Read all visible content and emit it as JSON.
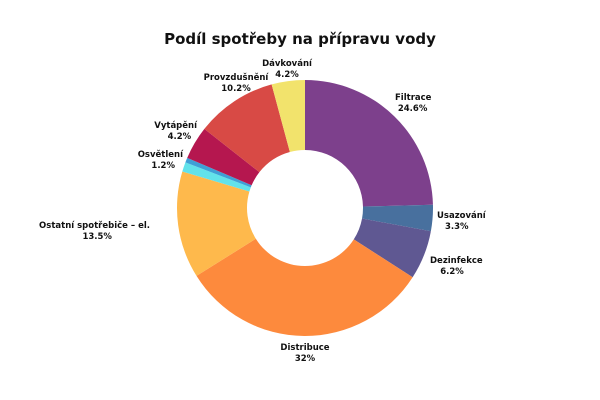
{
  "chart_data": {
    "type": "pie",
    "donut": true,
    "title": "Podíl spotřeby na přípravu vody",
    "legend": "none",
    "slices": [
      {
        "label": "Filtrace",
        "value": 24.6,
        "value_label": "24.6%",
        "color": "#7d408c"
      },
      {
        "label": "Usazování",
        "value": 3.3,
        "value_label": "3.3%",
        "color": "#48709e"
      },
      {
        "label": "Dezinfekce",
        "value": 6.2,
        "value_label": "6.2%",
        "color": "#5f5892"
      },
      {
        "label": "Distribuce",
        "value": 32,
        "value_label": "32%",
        "color": "#fd8a3d"
      },
      {
        "label": "Ostatní spotřebiče – el.",
        "value": 13.5,
        "value_label": "13.5%",
        "color": "#feb94c"
      },
      {
        "label": "Osvětlení",
        "value": 1.2,
        "value_label": "1.2%",
        "color": "#62e2ea"
      },
      {
        "label": "",
        "value": 0.6,
        "value_label": "",
        "color": "#3f9fd6"
      },
      {
        "label": "Vytápění",
        "value": 4.2,
        "value_label": "4.2%",
        "color": "#b5174f"
      },
      {
        "label": "Provzdušnění",
        "value": 10.2,
        "value_label": "10.2%",
        "color": "#d84a45"
      },
      {
        "label": "Dávkování",
        "value": 4.2,
        "value_label": "4.2%",
        "color": "#f2e36c"
      }
    ]
  }
}
